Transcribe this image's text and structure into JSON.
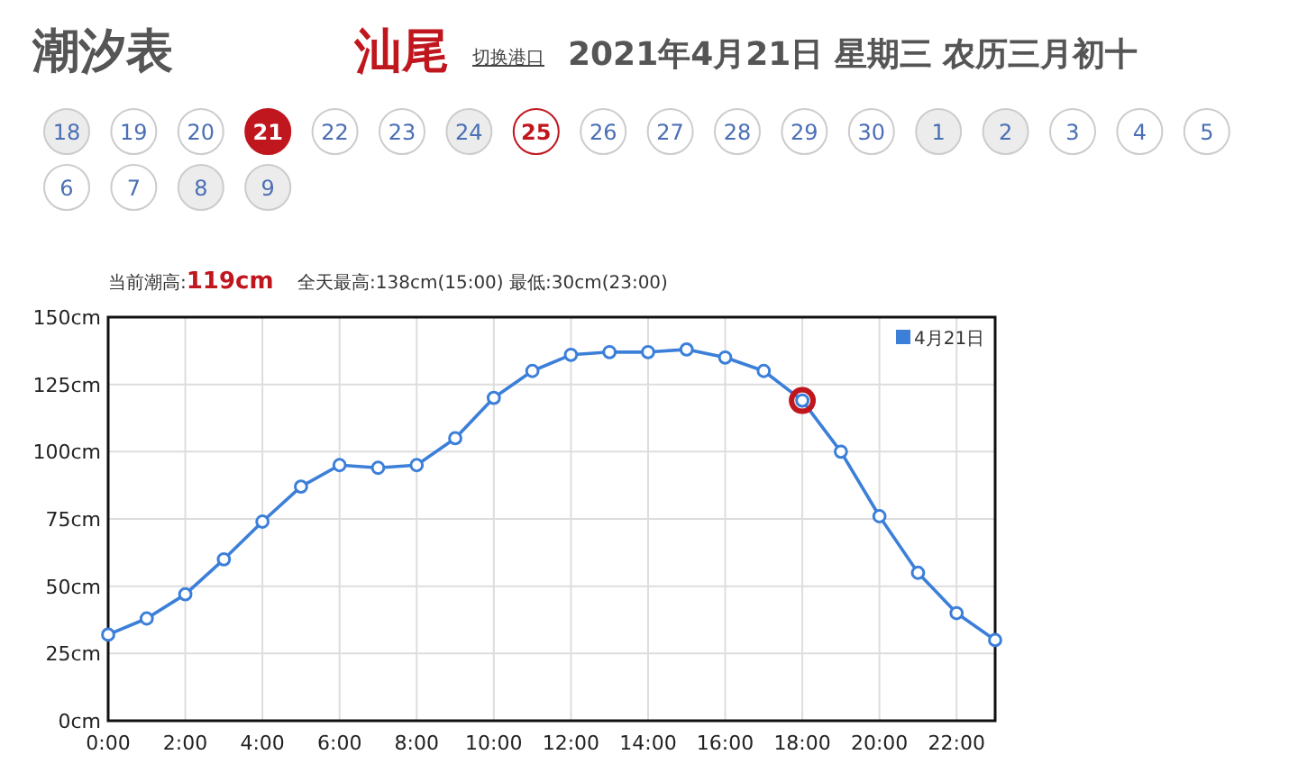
{
  "chart_data": {
    "type": "line",
    "title": "潮汐表",
    "subtitle": "2021年4月21日 星期三 农历三月初十",
    "annotations": [
      "汕尾",
      "切换港口",
      "当前潮高:**119cm**",
      "全天最高:138cm(15:00) 最低:30cm(23:00)",
      "18",
      "19",
      "20",
      "21",
      "22",
      "23",
      "24",
      "25",
      "26",
      "27",
      "28",
      "29",
      "30",
      "1",
      "2",
      "3",
      "4",
      "5",
      "6",
      "7",
      "8",
      "9"
    ],
    "x": [
      0,
      1,
      2,
      3,
      4,
      5,
      6,
      7,
      8,
      9,
      10,
      11,
      12,
      13,
      14,
      15,
      16,
      17,
      18,
      19,
      20,
      21,
      22,
      23
    ],
    "series": [
      {
        "name": "4月21日",
        "color": "#3c7fd9",
        "values": [
          32,
          38,
          47,
          60,
          74,
          87,
          95,
          94,
          95,
          105,
          120,
          130,
          136,
          137,
          137,
          138,
          135,
          130,
          119,
          100,
          76,
          55,
          40,
          30
        ]
      },
      {
        "type": "scatter",
        "color": "#c0161e",
        "x": [
          18
        ],
        "values": [
          119
        ]
      }
    ],
    "xlim": [
      0,
      23
    ],
    "xticks": [
      {
        "value": 0,
        "label": "0:00"
      },
      {
        "value": 2,
        "label": "2:00"
      },
      {
        "value": 4,
        "label": "4:00"
      },
      {
        "value": 6,
        "label": "6:00"
      },
      {
        "value": 8,
        "label": "8:00"
      },
      {
        "value": 10,
        "label": "10:00"
      },
      {
        "value": 12,
        "label": "12:00"
      },
      {
        "value": 14,
        "label": "14:00"
      },
      {
        "value": 16,
        "label": "16:00"
      },
      {
        "value": 18,
        "label": "18:00"
      },
      {
        "value": 20,
        "label": "20:00"
      },
      {
        "value": 22,
        "label": "22:00"
      }
    ],
    "ylim": [
      0,
      150
    ],
    "yticks": [
      {
        "value": 0,
        "label": "0cm"
      },
      {
        "value": 25,
        "label": "25cm"
      },
      {
        "value": 50,
        "label": "50cm"
      },
      {
        "value": 75,
        "label": "75cm"
      },
      {
        "value": 100,
        "label": "100cm"
      },
      {
        "value": 125,
        "label": "125cm"
      },
      {
        "value": 150,
        "label": "150cm"
      }
    ],
    "grid": true,
    "legend": "top right",
    "marker": "circle",
    "line_style": "solid"
  }
}
